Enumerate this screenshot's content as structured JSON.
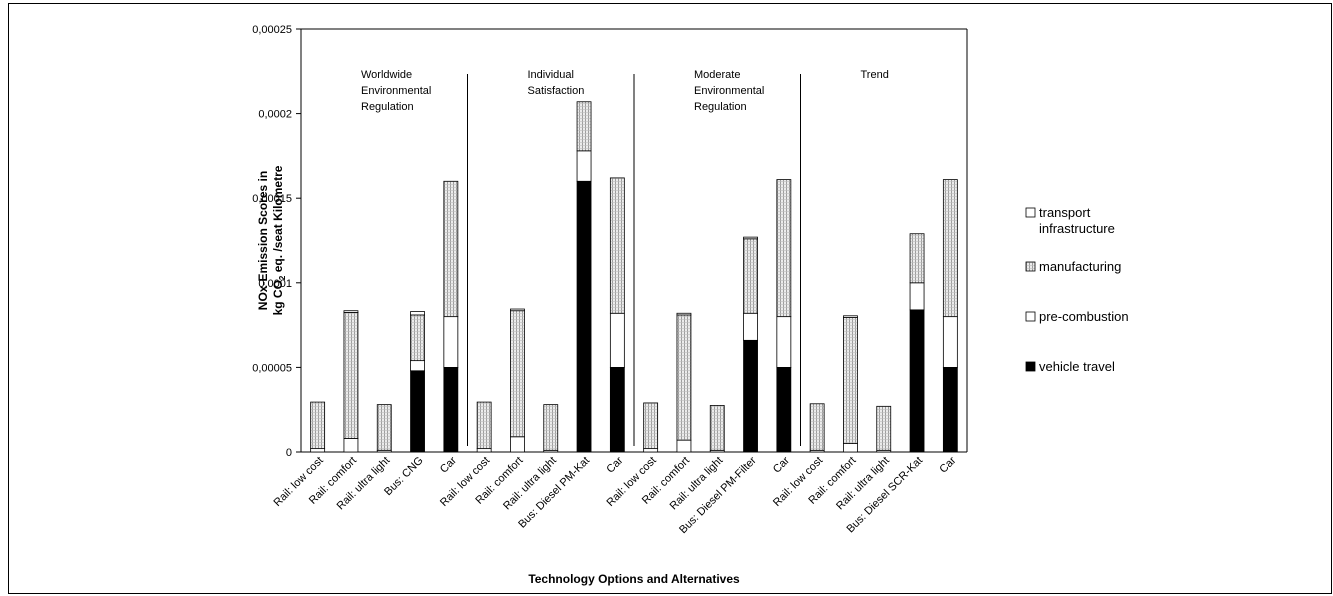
{
  "chart_data": {
    "type": "bar",
    "stacked": true,
    "xlabel": "Technology Options and Alternatives",
    "ylabel_line1": "NOx-Emission Scores in",
    "ylabel_line2_pre": "kg CO",
    "ylabel_line2_sub": "2",
    "ylabel_line2_post": " eq. /seat Kilometre",
    "ylim": [
      0,
      0.00025
    ],
    "yticks": [
      "0",
      "0,00005",
      "0,0001",
      "0,00015",
      "0,0002",
      "0,00025"
    ],
    "ytick_values": [
      0,
      5e-05,
      0.0001,
      0.00015,
      0.0002,
      0.00025
    ],
    "grid": false,
    "legend_position": "right",
    "categories": [
      "Rail: low cost",
      "Rail: comfort",
      "Rail: ultra light",
      "Bus: CNG",
      "Car",
      "Rail: low cost",
      "Rail: comfort",
      "Rail: ultra light",
      "Bus: Diesel PM-Kat",
      "Car",
      "Rail: low cost",
      "Rail: comfort",
      "Rail: ultra light",
      "Bus: Diesel PM-Filter",
      "Car",
      "Rail: low cost",
      "Rail: comfort",
      "Rail: ultra light",
      "Bus: Diesel SCR-Kat",
      "Car"
    ],
    "series": [
      {
        "name": "vehicle travel",
        "color": "#000000",
        "values": [
          0,
          0,
          0,
          4.8e-05,
          5e-05,
          0,
          0,
          0,
          0.00016,
          5e-05,
          0,
          0,
          0,
          6.6e-05,
          5e-05,
          0,
          0,
          0,
          8.4e-05,
          5e-05
        ]
      },
      {
        "name": "pre-combustion",
        "color": "#ffffff",
        "values": [
          2e-06,
          8e-06,
          1e-06,
          6e-06,
          3e-05,
          2e-06,
          9e-06,
          1e-06,
          1.8e-05,
          3.2e-05,
          2e-06,
          7e-06,
          1e-06,
          1.6e-05,
          3e-05,
          1e-06,
          5e-06,
          1e-06,
          1.6e-05,
          3e-05
        ]
      },
      {
        "name": "manufacturing",
        "color": "#d4d4d4",
        "values": [
          2.75e-05,
          7.45e-05,
          2.7e-05,
          2.7e-05,
          8e-05,
          2.75e-05,
          7.45e-05,
          2.7e-05,
          2.9e-05,
          8e-05,
          2.7e-05,
          7.4e-05,
          2.65e-05,
          4.4e-05,
          8.1e-05,
          2.75e-05,
          7.45e-05,
          2.6e-05,
          2.9e-05,
          8.1e-05
        ]
      },
      {
        "name": "transport infrastructure",
        "color": "#ffffff",
        "values": [
          0,
          1e-06,
          0,
          2e-06,
          0,
          0,
          1e-06,
          0,
          0,
          0,
          0,
          1e-06,
          0,
          1e-06,
          0,
          0,
          1e-06,
          0,
          0,
          0
        ]
      }
    ],
    "groups": [
      {
        "lines": [
          "Worldwide",
          "Environmental",
          "Regulation"
        ]
      },
      {
        "lines": [
          "Individual",
          "Satisfaction"
        ]
      },
      {
        "lines": [
          "Moderate",
          "Environmental",
          "Regulation"
        ]
      },
      {
        "lines": [
          "Trend"
        ]
      }
    ],
    "legend": [
      {
        "lines": [
          "transport",
          "infrastructure"
        ],
        "color": "#ffffff"
      },
      {
        "lines": [
          "manufacturing"
        ],
        "color": "#d4d4d4"
      },
      {
        "lines": [
          "pre-combustion"
        ],
        "color": "#ffffff"
      },
      {
        "lines": [
          "vehicle travel"
        ],
        "color": "#000000"
      }
    ]
  }
}
